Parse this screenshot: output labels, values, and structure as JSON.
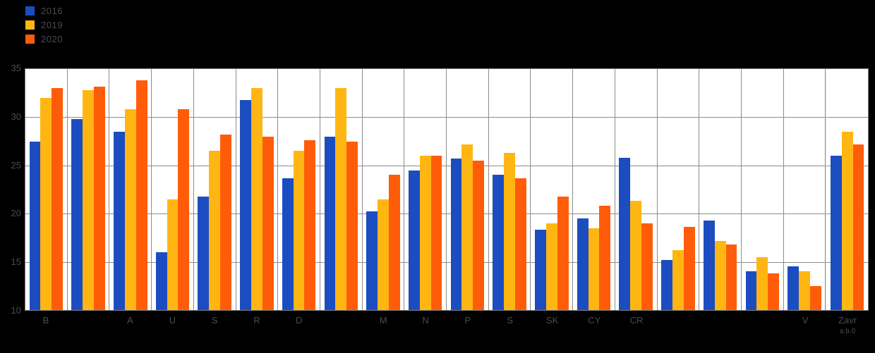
{
  "colors": {
    "series_blue": "#1b4dc1",
    "series_yellow": "#ffb612",
    "series_orange": "#ff5c0a",
    "plot_background": "#ffffff",
    "page_background": "#000000",
    "gridline": "#8c8c8c",
    "axis_text": "#4a4a56"
  },
  "legend": {
    "position": "top-left",
    "items": [
      {
        "label": "2016",
        "color": "#1b4dc1"
      },
      {
        "label": "2019",
        "color": "#ffb612"
      },
      {
        "label": "2020",
        "color": "#ff5c0a"
      }
    ]
  },
  "chart_data": {
    "type": "bar",
    "title": "",
    "xlabel": "",
    "ylabel": "",
    "ylim": [
      10,
      35
    ],
    "yticks": [
      10,
      15,
      20,
      25,
      30,
      35
    ],
    "grid": true,
    "legend_position": "top-left",
    "separator_before_last_group": true,
    "categories": [
      "B",
      "",
      "A",
      "U",
      "S",
      "R",
      "D",
      "",
      "M",
      "N",
      "P",
      "S",
      "SK",
      "CY",
      "CR",
      "",
      "",
      "",
      "V",
      "Zavr"
    ],
    "category_sublines": {
      "19": "a.b.0"
    },
    "series": [
      {
        "name": "2016",
        "color": "#1b4dc1",
        "values": [
          27.5,
          29.8,
          28.5,
          16.0,
          21.8,
          31.8,
          23.7,
          28.0,
          20.2,
          24.5,
          25.7,
          24.0,
          18.3,
          19.5,
          25.8,
          15.2,
          19.3,
          14.0,
          14.5,
          26.0
        ]
      },
      {
        "name": "2019",
        "color": "#ffb612",
        "values": [
          32.0,
          32.8,
          30.8,
          21.5,
          26.5,
          33.0,
          26.5,
          33.0,
          21.5,
          26.0,
          27.2,
          26.3,
          19.0,
          18.5,
          21.3,
          16.2,
          17.2,
          15.5,
          14.0,
          28.5
        ]
      },
      {
        "name": "2020",
        "color": "#ff5c0a",
        "values": [
          33.0,
          33.2,
          33.8,
          30.8,
          28.2,
          28.0,
          27.6,
          27.5,
          24.0,
          26.0,
          25.5,
          23.7,
          21.8,
          20.8,
          19.0,
          18.6,
          16.8,
          13.8,
          12.5,
          27.2
        ]
      }
    ]
  }
}
